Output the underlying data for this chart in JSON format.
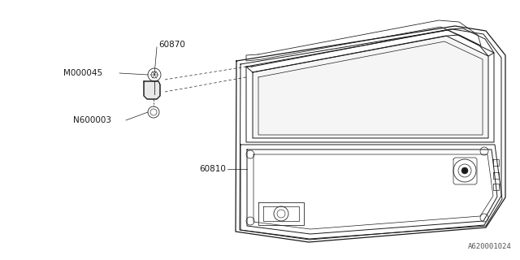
{
  "bg_color": "#ffffff",
  "line_color": "#1a1a1a",
  "label_color": "#1a1a1a",
  "watermark": "A620001024",
  "lw": 0.7,
  "fig_w": 6.4,
  "fig_h": 3.2,
  "dpi": 100
}
